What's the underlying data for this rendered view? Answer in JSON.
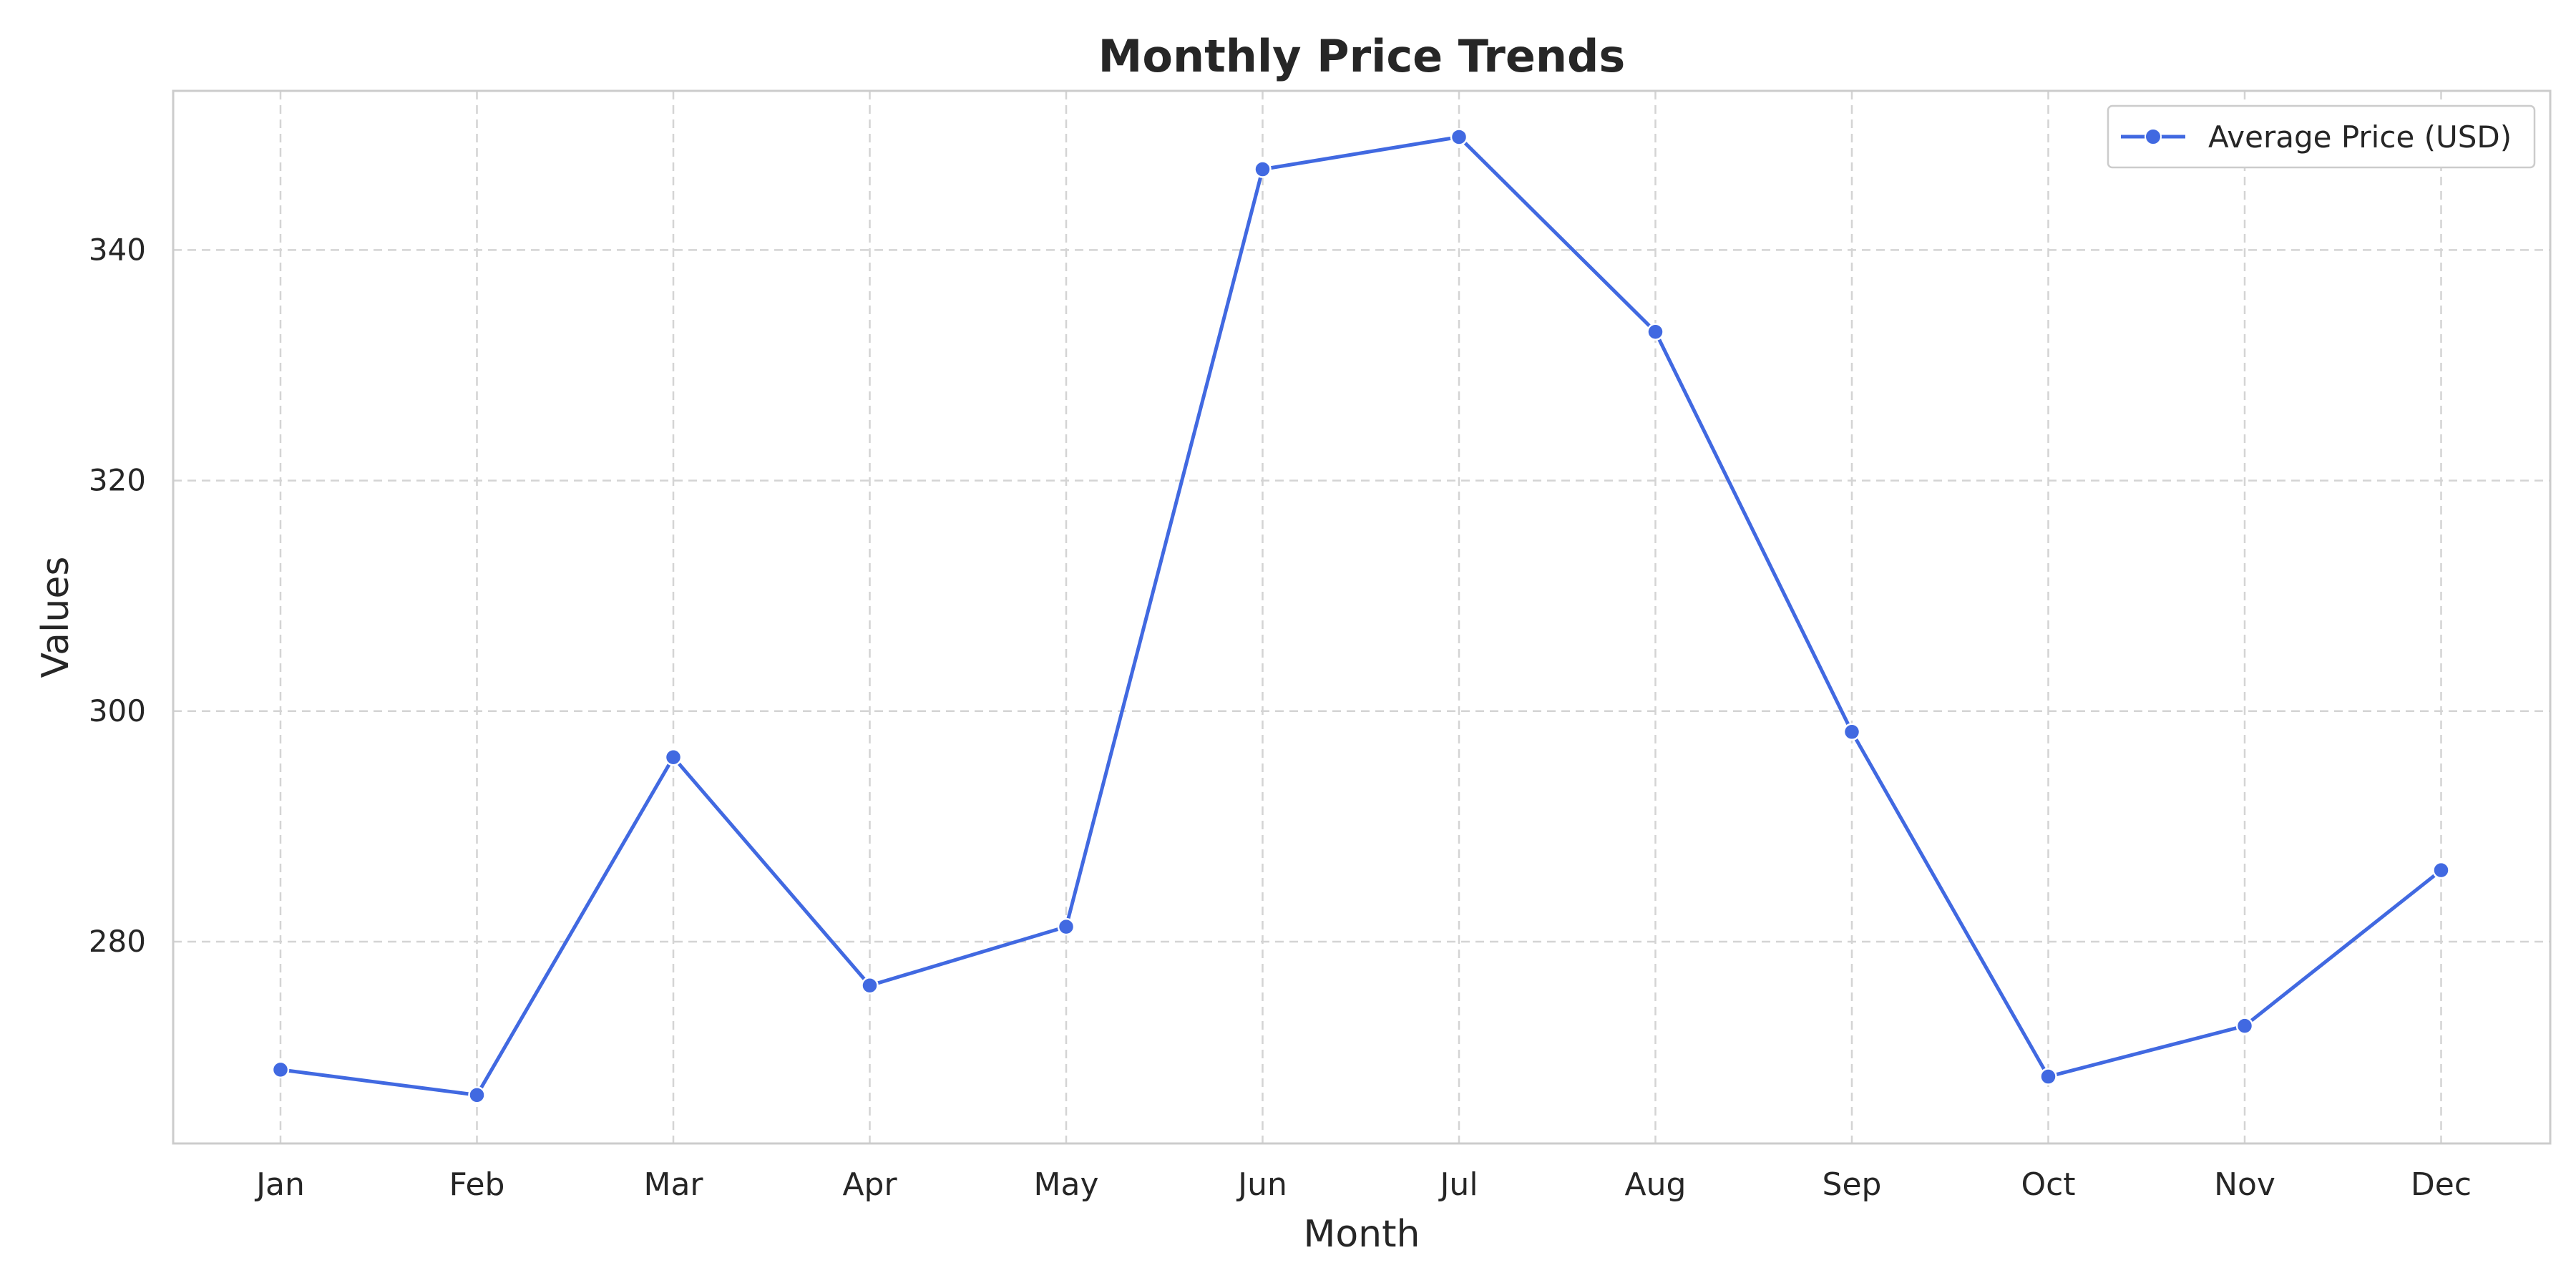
{
  "chart_data": {
    "type": "line",
    "title": "Monthly Price Trends",
    "xlabel": "Month",
    "ylabel": "Values",
    "categories": [
      "Jan",
      "Feb",
      "Mar",
      "Apr",
      "May",
      "Jun",
      "Jul",
      "Aug",
      "Sep",
      "Oct",
      "Nov",
      "Dec"
    ],
    "series": [
      {
        "name": "Average Price (USD)",
        "color": "#4169e1",
        "values": [
          268.9,
          266.7,
          296.0,
          276.2,
          281.3,
          347.0,
          349.8,
          332.9,
          298.2,
          268.3,
          272.7,
          286.2
        ]
      }
    ],
    "ylim": [
      262.5,
      353.8
    ],
    "yticks": [
      280,
      300,
      320,
      340
    ],
    "grid": true,
    "grid_style": "dashed",
    "legend_position": "top-right",
    "colors": {
      "line": "#4169e1",
      "grid": "#d4d4d4",
      "frame": "#cccccc",
      "text": "#262626"
    }
  }
}
